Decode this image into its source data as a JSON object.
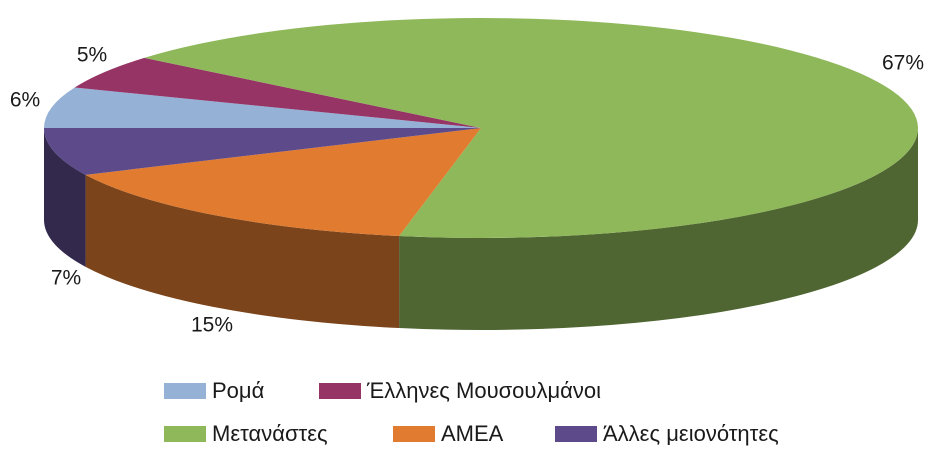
{
  "chart_data": {
    "type": "pie3d",
    "categories": [
      "Ρομά",
      "Έλληνες Μουσουλμάνοι",
      "Μετανάστες",
      "ΑΜΕΑ",
      "Άλλες μειονότητες"
    ],
    "values": [
      6,
      5,
      67,
      15,
      7
    ],
    "value_labels": [
      "6%",
      "5%",
      "67%",
      "15%",
      "7%"
    ],
    "colors": [
      "#95b1d6",
      "#953465",
      "#8fb85b",
      "#e07b30",
      "#5c4a8b"
    ],
    "legend": "bottom"
  }
}
